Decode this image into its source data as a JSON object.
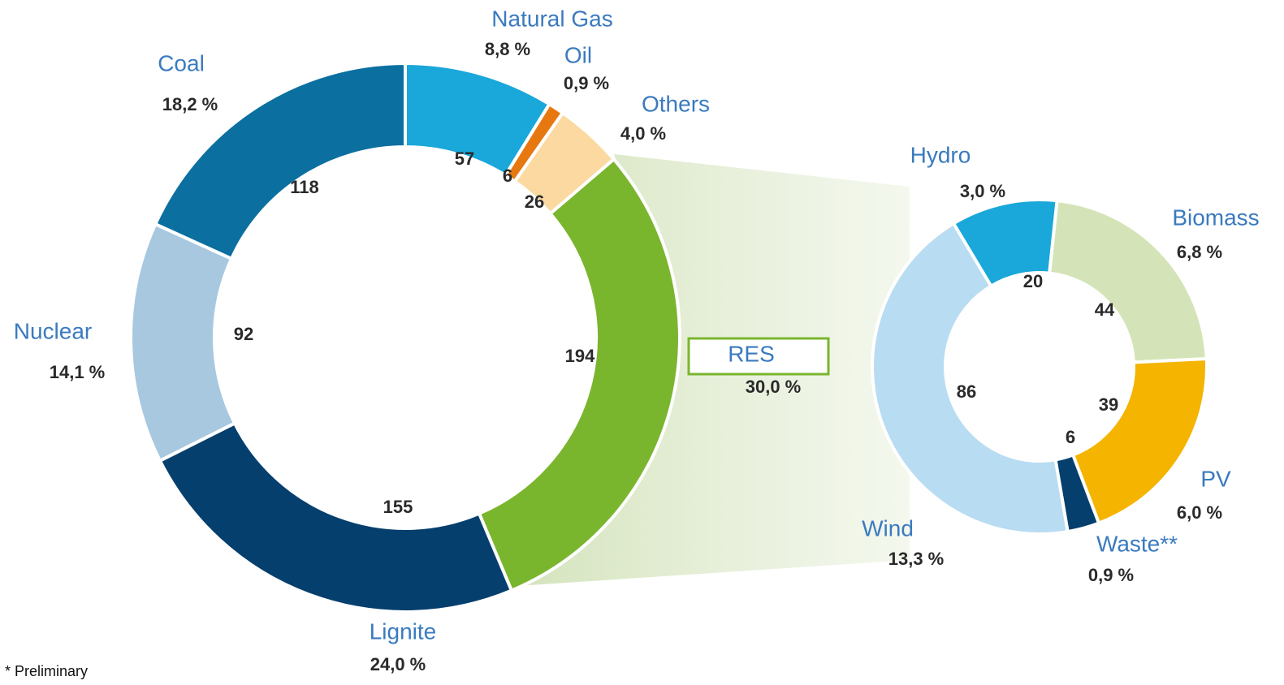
{
  "chart_data": [
    {
      "type": "donut",
      "categories": [
        "Natural Gas",
        "Oil",
        "Others",
        "RES",
        "Lignite",
        "Nuclear",
        "Coal"
      ],
      "values": [
        57,
        6,
        26,
        194,
        155,
        92,
        118
      ],
      "share_labels": [
        "8,8 %",
        "0,9 %",
        "4,0 %",
        "30,0 %",
        "24,0 %",
        "14,1 %",
        "18,2 %"
      ],
      "colors": [
        "#1aa7d9",
        "#e6780f",
        "#fbd9a0",
        "#7ab52e",
        "#053f6e",
        "#a8c8e0",
        "#0b6fa0"
      ]
    },
    {
      "type": "donut",
      "categories": [
        "Biomass",
        "PV",
        "Waste**",
        "Wind",
        "Hydro"
      ],
      "values": [
        44,
        39,
        6,
        86,
        20
      ],
      "share_labels": [
        "6,8 %",
        "6,0 %",
        "0,9 %",
        "13,3 %",
        "3,0 %"
      ],
      "colors": [
        "#d5e4b8",
        "#f4b400",
        "#053f6e",
        "#b8dcf2",
        "#1aa7d9"
      ]
    }
  ],
  "footnote": "*   Preliminary"
}
